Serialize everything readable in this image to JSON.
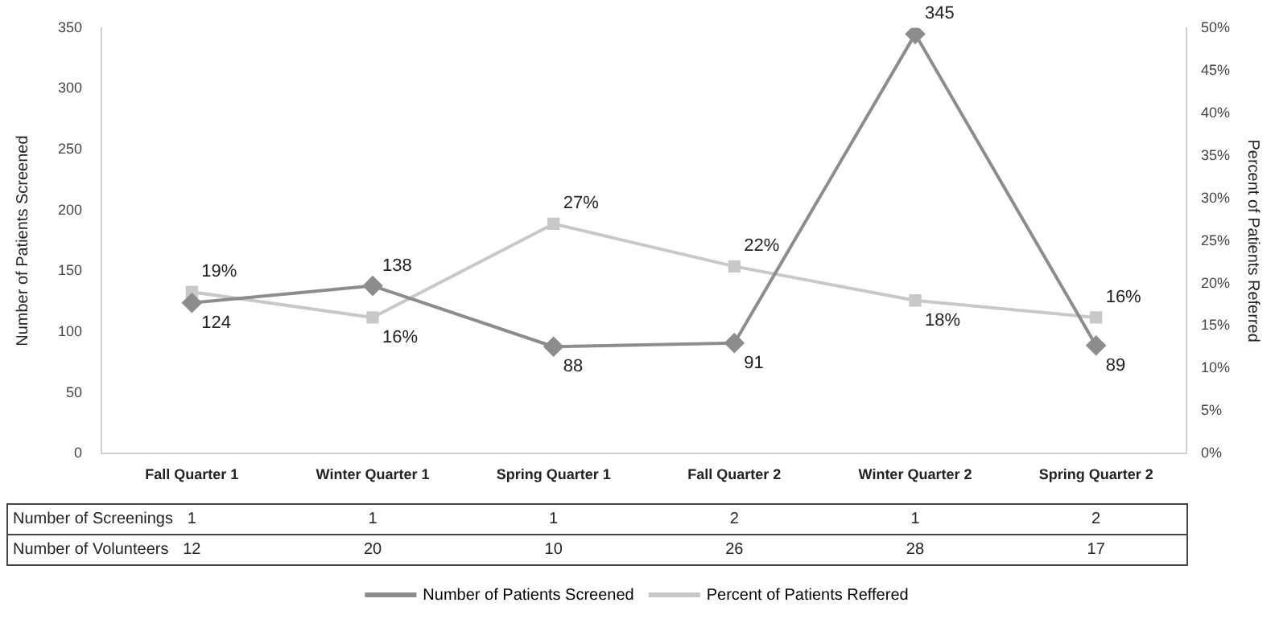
{
  "chart_data": {
    "type": "line",
    "ylabel": "Number of Patients Screened",
    "y2label": "Percent of Patients Referred",
    "categories": [
      "Fall Quarter 1",
      "Winter Quarter 1",
      "Spring Quarter 1",
      "Fall Quarter 2",
      "Winter Quarter 2",
      "Spring Quarter 2"
    ],
    "series": [
      {
        "name": "Number of Patients Screened",
        "color": "#8c8c8c",
        "marker": "diamond",
        "values": [
          124,
          138,
          88,
          91,
          345,
          89
        ],
        "value_labels": [
          "124",
          "138",
          "88",
          "91",
          "345",
          "89"
        ]
      },
      {
        "name": "Percent of Patients Reffered",
        "color": "#c8c8c8",
        "marker": "square",
        "axis": "y2",
        "values": [
          19,
          16,
          27,
          22,
          18,
          16
        ],
        "value_labels": [
          "19%",
          "16%",
          "27%",
          "22%",
          "18%",
          "16%"
        ]
      }
    ],
    "ylim": [
      0,
      350
    ],
    "yticks": [
      0,
      50,
      100,
      150,
      200,
      250,
      300,
      350
    ],
    "y2lim": [
      0,
      50
    ],
    "y2ticks": [
      {
        "value": 0,
        "label": "0%"
      },
      {
        "value": 5,
        "label": "5%"
      },
      {
        "value": 10,
        "label": "10%"
      },
      {
        "value": 15,
        "label": "15%"
      },
      {
        "value": 20,
        "label": "20%"
      },
      {
        "value": 25,
        "label": "25%"
      },
      {
        "value": 30,
        "label": "30%"
      },
      {
        "value": 35,
        "label": "35%"
      },
      {
        "value": 40,
        "label": "40%"
      },
      {
        "value": 45,
        "label": "45%"
      },
      {
        "value": 50,
        "label": "50%"
      }
    ],
    "annotations": [
      "Number of Screenings",
      "1",
      "1",
      "1",
      "2",
      "1",
      "2",
      "Number of Volunteers",
      "12",
      "20",
      "10",
      "26",
      "28",
      "17"
    ],
    "grid": false,
    "legend": "bottom",
    "line_style": "solid"
  }
}
